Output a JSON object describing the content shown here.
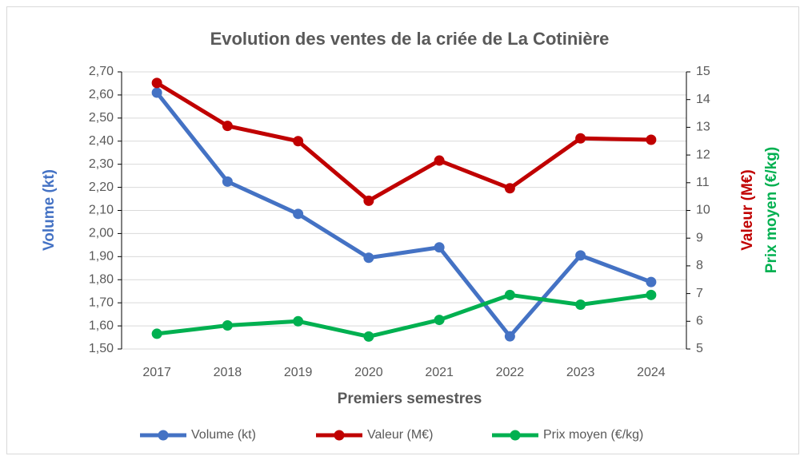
{
  "chart_data": {
    "type": "line",
    "title": "Evolution des ventes de la criée de La Cotinière",
    "xlabel": "Premiers semestres",
    "ylabel": "Volume (kt)",
    "ylabel_color": "#4472c4",
    "y2labels": [
      {
        "text": "Valeur (M€)",
        "color": "#c00000"
      },
      {
        "text": "Prix moyen (€/kg)",
        "color": "#00b050"
      }
    ],
    "categories": [
      "2017",
      "2018",
      "2019",
      "2020",
      "2021",
      "2022",
      "2023",
      "2024"
    ],
    "series": [
      {
        "name": "Volume (kt)",
        "color": "#4472c4",
        "values": [
          2.61,
          2.225,
          2.085,
          1.895,
          1.94,
          1.555,
          1.905,
          1.79
        ]
      },
      {
        "name": "Valeur (M€)",
        "color": "#c00000",
        "axis": "y2",
        "values": [
          14.6,
          13.05,
          12.5,
          10.35,
          11.8,
          10.8,
          12.6,
          12.55
        ]
      },
      {
        "name": "Prix moyen (€/kg)",
        "color": "#00b050",
        "axis": "y2",
        "values": [
          5.55,
          5.85,
          6.0,
          5.45,
          6.05,
          6.95,
          6.6,
          6.95
        ]
      }
    ],
    "ylim": [
      1.5,
      2.7
    ],
    "yticks": [
      {
        "value": 1.5,
        "label": "1,50"
      },
      {
        "value": 1.6,
        "label": "1,60"
      },
      {
        "value": 1.7,
        "label": "1,70"
      },
      {
        "value": 1.8,
        "label": "1,80"
      },
      {
        "value": 1.9,
        "label": "1,90"
      },
      {
        "value": 2.0,
        "label": "2,00"
      },
      {
        "value": 2.1,
        "label": "2,10"
      },
      {
        "value": 2.2,
        "label": "2,20"
      },
      {
        "value": 2.3,
        "label": "2,30"
      },
      {
        "value": 2.4,
        "label": "2,40"
      },
      {
        "value": 2.5,
        "label": "2,50"
      },
      {
        "value": 2.6,
        "label": "2,60"
      },
      {
        "value": 2.7,
        "label": "2,70"
      }
    ],
    "y2lim": [
      5,
      15
    ],
    "y2ticks": [
      5,
      6,
      7,
      8,
      9,
      10,
      11,
      12,
      13,
      14,
      15
    ],
    "grid": true,
    "legend": "bottom"
  }
}
